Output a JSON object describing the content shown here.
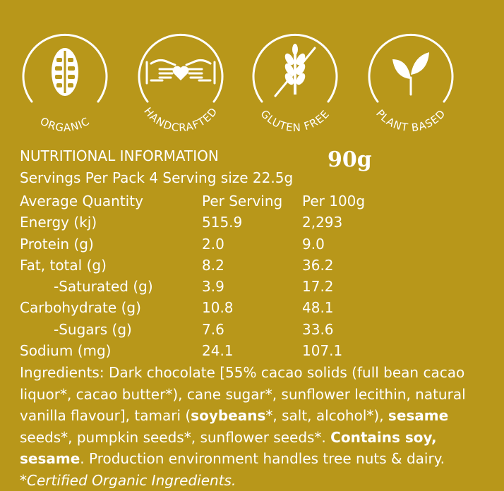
{
  "badges": [
    {
      "id": "organic",
      "label": "ORGANIC",
      "icon": "cacao-pod-icon"
    },
    {
      "id": "handcrafted",
      "label": "HANDCRAFTED",
      "icon": "hands-heart-icon"
    },
    {
      "id": "gluten-free",
      "label": "GLUTEN FREE",
      "icon": "wheat-icon"
    },
    {
      "id": "plant-based",
      "label": "PLANT BASED",
      "icon": "leaf-icon"
    }
  ],
  "nutrition": {
    "title": "NUTRITIONAL INFORMATION",
    "weight": "90g",
    "servings": "Servings Per Pack 4 Serving size 22.5g",
    "header": {
      "label": "Average Quantity",
      "per_serving": "Per Serving",
      "per_100g": "Per 100g"
    },
    "rows": [
      {
        "label": "Energy (kj)",
        "per_serving": "515.9",
        "per_100g": "2,293"
      },
      {
        "label": "Protein (g)",
        "per_serving": "2.0",
        "per_100g": "9.0"
      },
      {
        "label": "Fat, total (g)",
        "per_serving": "8.2",
        "per_100g": "36.2"
      },
      {
        "label": "-Saturated (g)",
        "per_serving": "3.9",
        "per_100g": "17.2"
      },
      {
        "label": "Carbohydrate (g)",
        "per_serving": "10.8",
        "per_100g": "48.1"
      },
      {
        "label": "-Sugars (g)",
        "per_serving": "7.6",
        "per_100g": "33.6"
      },
      {
        "label": "Sodium (mg)",
        "per_serving": "24.1",
        "per_100g": "107.1"
      }
    ]
  },
  "ingredients": {
    "p1": "Ingredients: Dark chocolate [55% cacao solids (full bean cacao liquor*, cacao butter*), cane sugar*, sunflower lecithin, natural vanilla flavour], tamari (",
    "b1": "soybeans",
    "p2": "*, salt, alcohol*), ",
    "b2": "sesame",
    "p3": " seeds*, pumpkin seeds*, sunflower seeds*. ",
    "b3": "Contains soy, sesame",
    "p4": ". Production environment handles tree nuts & dairy. ",
    "i1": "*Certified Organic Ingredients."
  }
}
